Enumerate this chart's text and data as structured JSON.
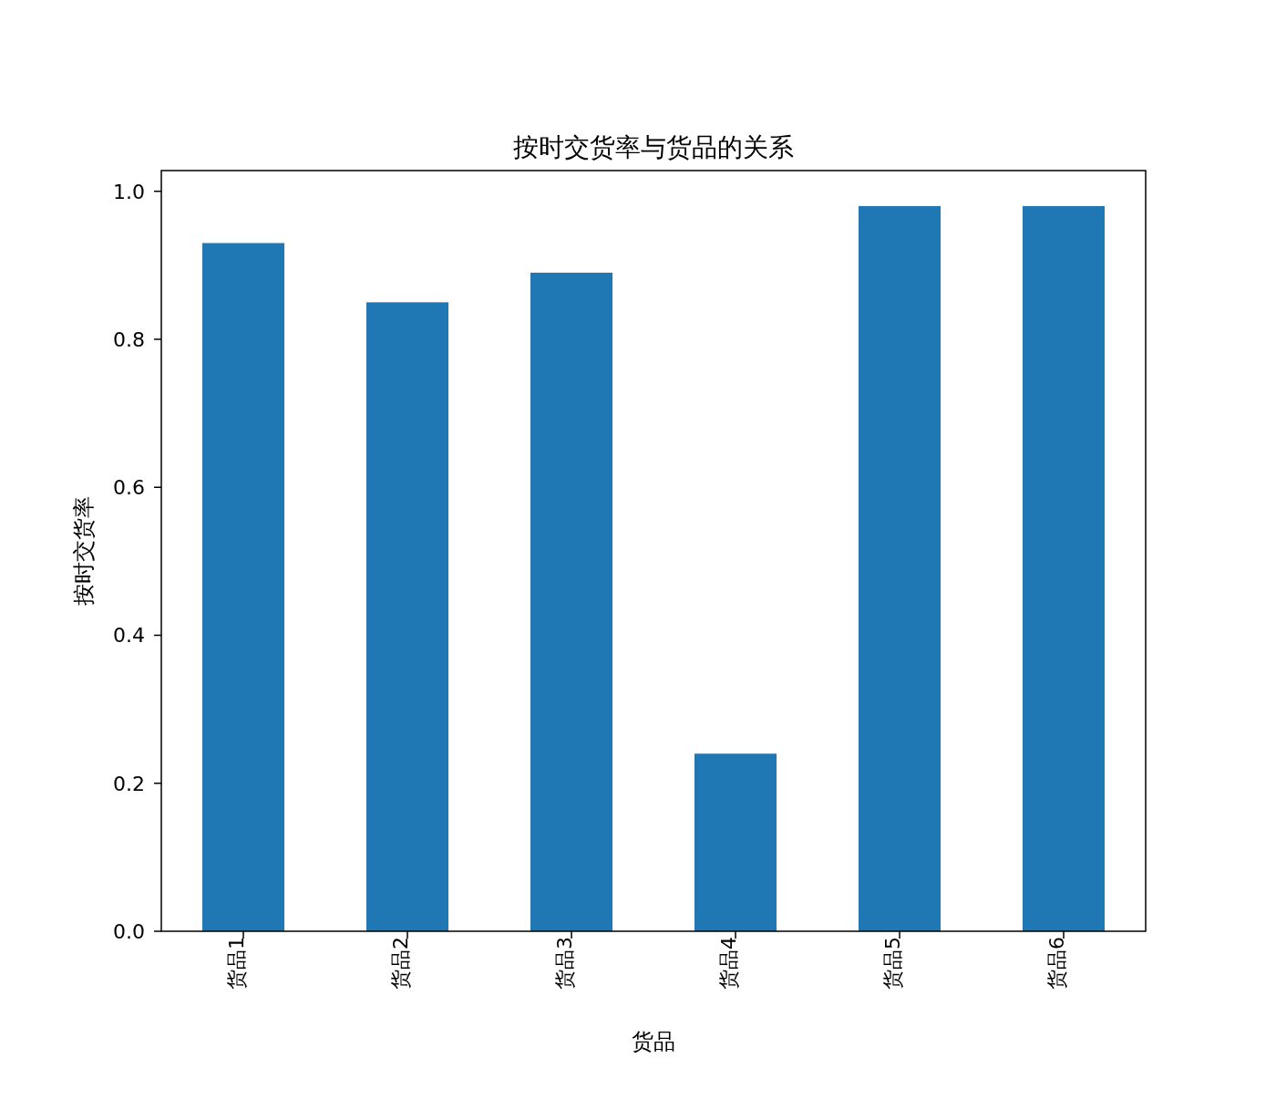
{
  "chart_data": {
    "type": "bar",
    "title": "按时交货率与货品的关系",
    "xlabel": "货品",
    "ylabel": "按时交货率",
    "categories": [
      "货品1",
      "货品2",
      "货品3",
      "货品4",
      "货品5",
      "货品6"
    ],
    "values": [
      0.93,
      0.85,
      0.89,
      0.24,
      0.98,
      0.98
    ],
    "color": "#1f77b4",
    "ylim": [
      0,
      1.028
    ],
    "yticks": [
      {
        "value": 0,
        "label": "0.0"
      },
      {
        "value": 0.2,
        "label": "0.2"
      },
      {
        "value": 0.4,
        "label": "0.4"
      },
      {
        "value": 0.6,
        "label": "0.6"
      },
      {
        "value": 0.8,
        "label": "0.8"
      },
      {
        "value": 1.0,
        "label": "1.0"
      }
    ]
  }
}
